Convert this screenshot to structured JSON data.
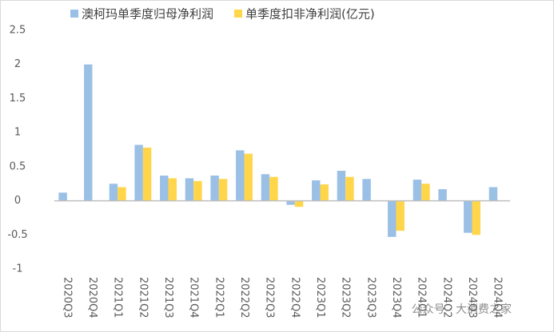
{
  "chart_data": {
    "type": "bar",
    "categories": [
      "2020Q3",
      "2020Q4",
      "2021Q1",
      "2021Q2",
      "2021Q3",
      "2021Q4",
      "2022Q1",
      "2022Q2",
      "2022Q3",
      "2022Q4",
      "2023Q1",
      "2023Q2",
      "2023Q3",
      "2023Q4",
      "2024Q1",
      "2024Q2",
      "2024Q3",
      "2024Q4"
    ],
    "series": [
      {
        "name": "澳柯玛单季度归母净利润",
        "color": "#9bc0e6",
        "values": [
          0.12,
          2.0,
          0.25,
          0.82,
          0.37,
          0.33,
          0.37,
          0.74,
          0.39,
          -0.06,
          0.3,
          0.44,
          0.32,
          -0.53,
          0.31,
          0.17,
          -0.47,
          0.2
        ]
      },
      {
        "name": "单季度扣非净利润(亿元)",
        "color": "#ffd54a",
        "values": [
          null,
          null,
          0.2,
          0.78,
          0.33,
          0.29,
          0.32,
          0.69,
          0.35,
          -0.09,
          0.24,
          0.35,
          null,
          -0.44,
          0.25,
          null,
          -0.5,
          null
        ]
      }
    ],
    "ylim": [
      -1,
      2.5
    ],
    "yticks": [
      -1,
      -0.5,
      0,
      0.5,
      1,
      1.5,
      2,
      2.5
    ],
    "watermark": "公众号 · 大消费之家"
  }
}
